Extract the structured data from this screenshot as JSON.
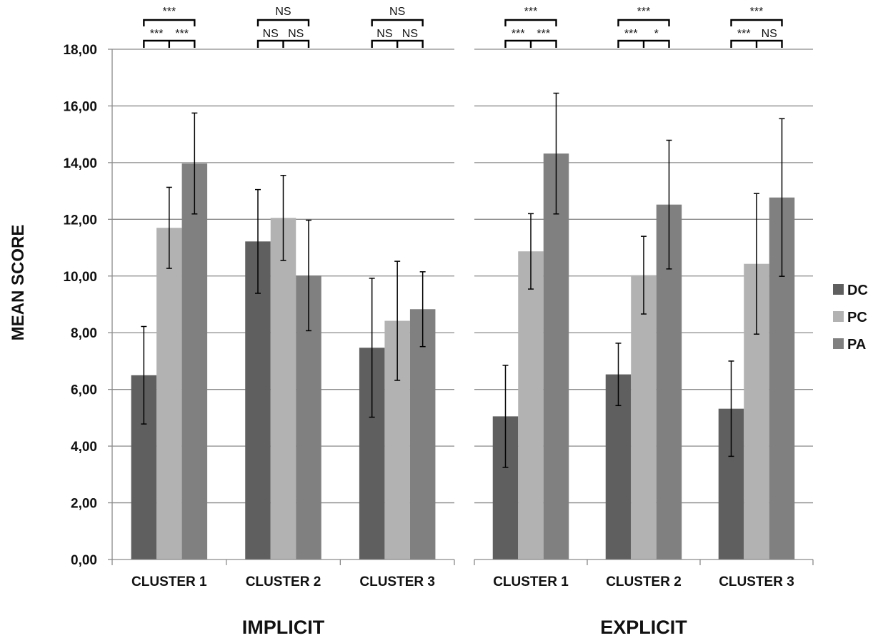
{
  "chart_data": {
    "type": "bar",
    "ylabel": "MEAN SCORE",
    "ylim": [
      0,
      18
    ],
    "yticks": [
      "0,00",
      "2,00",
      "4,00",
      "6,00",
      "8,00",
      "10,00",
      "12,00",
      "14,00",
      "16,00",
      "18,00"
    ],
    "grid": true,
    "legend_placement": "right",
    "series_names": [
      "DC",
      "PC",
      "PA"
    ],
    "series_colors": [
      "#5f5f5f",
      "#b2b2b2",
      "#808080"
    ],
    "panels": [
      {
        "title": "IMPLICIT",
        "categories": [
          "CLUSTER 1",
          "CLUSTER 2",
          "CLUSTER 3"
        ],
        "series": [
          {
            "name": "DC",
            "values": [
              6.5,
              11.22,
              7.47
            ],
            "errors": [
              1.72,
              1.83,
              2.45
            ]
          },
          {
            "name": "PC",
            "values": [
              11.7,
              12.05,
              8.42
            ],
            "errors": [
              1.43,
              1.5,
              2.1
            ]
          },
          {
            "name": "PA",
            "values": [
              13.97,
              10.02,
              8.83
            ],
            "errors": [
              1.78,
              1.95,
              1.32
            ]
          }
        ],
        "significance": [
          {
            "top": "***",
            "left": "***",
            "right": "***"
          },
          {
            "top": "NS",
            "left": "NS",
            "right": "NS"
          },
          {
            "top": "NS",
            "left": "NS",
            "right": "NS"
          }
        ]
      },
      {
        "title": "EXPLICIT",
        "categories": [
          "CLUSTER 1",
          "CLUSTER 2",
          "CLUSTER 3"
        ],
        "series": [
          {
            "name": "DC",
            "values": [
              5.05,
              6.53,
              5.32
            ],
            "errors": [
              1.8,
              1.1,
              1.68
            ]
          },
          {
            "name": "PC",
            "values": [
              10.87,
              10.03,
              10.43
            ],
            "errors": [
              1.33,
              1.37,
              2.48
            ]
          },
          {
            "name": "PA",
            "values": [
              14.32,
              12.52,
              12.77
            ],
            "errors": [
              2.13,
              2.27,
              2.78
            ]
          }
        ],
        "significance": [
          {
            "top": "***",
            "left": "***",
            "right": "***"
          },
          {
            "top": "***",
            "left": "***",
            "right": "*"
          },
          {
            "top": "***",
            "left": "***",
            "right": "NS"
          }
        ]
      }
    ]
  }
}
